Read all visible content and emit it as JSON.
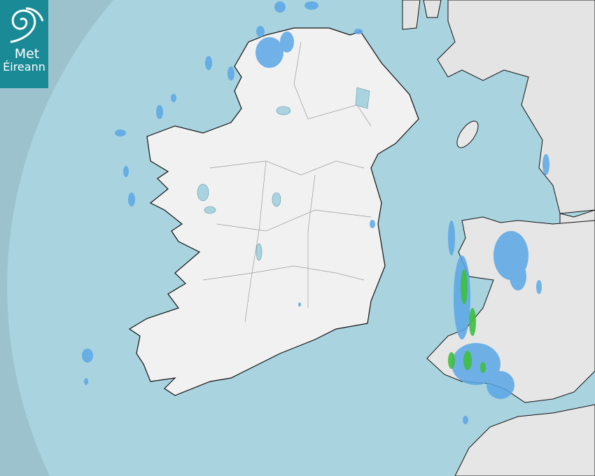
{
  "logo": {
    "line1": "Met",
    "line2": "Éireann"
  },
  "map": {
    "type": "rainfall-radar",
    "colors": {
      "sea_in_coverage": "#a9d3de",
      "sea_outside_coverage": "#9cc3cd",
      "land": "#eeeeee",
      "rain_light": "#5aa7e6",
      "rain_moderate": "#3fbf3f",
      "logo_bg": "#1a8a96"
    }
  }
}
